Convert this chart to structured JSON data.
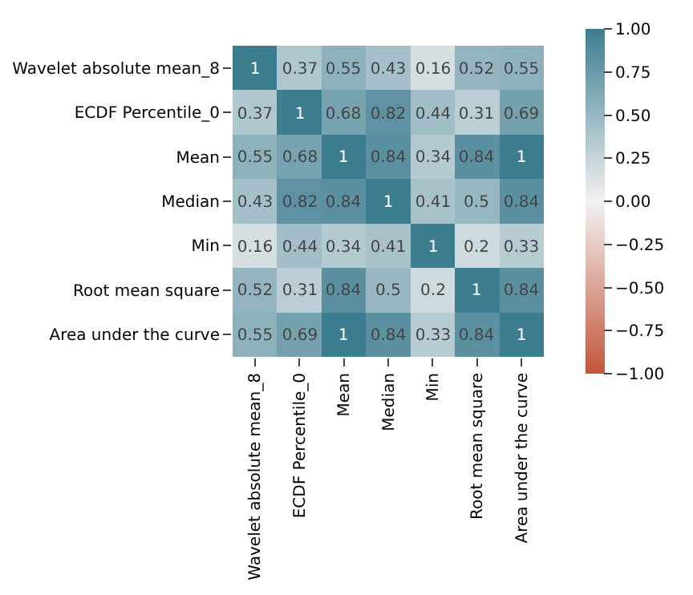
{
  "chart_data": {
    "type": "heatmap",
    "categories": [
      "Wavelet absolute mean_8",
      "ECDF Percentile_0",
      "Mean",
      "Median",
      "Min",
      "Root mean square",
      "Area under the curve"
    ],
    "y_categories": [
      "Wavelet absolute mean_8",
      "ECDF Percentile_0",
      "Mean",
      "Median",
      "Min",
      "Root mean square",
      "Area under the curve"
    ],
    "cells": [
      [
        1,
        0.37,
        0.55,
        0.43,
        0.16,
        0.52,
        0.55
      ],
      [
        0.37,
        1,
        0.68,
        0.82,
        0.44,
        0.31,
        0.69
      ],
      [
        0.55,
        0.68,
        1,
        0.84,
        0.34,
        0.84,
        1
      ],
      [
        0.43,
        0.82,
        0.84,
        1,
        0.41,
        0.5,
        0.84
      ],
      [
        0.16,
        0.44,
        0.34,
        0.41,
        1,
        0.2,
        0.33
      ],
      [
        0.52,
        0.31,
        0.84,
        0.5,
        0.2,
        1,
        0.84
      ],
      [
        0.55,
        0.69,
        1,
        0.84,
        0.33,
        0.84,
        1
      ]
    ],
    "data_labels": true,
    "clim": [
      -1,
      1
    ],
    "cticks": [
      {
        "value": -1,
        "label": "−1.00"
      },
      {
        "value": -0.75,
        "label": "−0.75"
      },
      {
        "value": -0.5,
        "label": "−0.50"
      },
      {
        "value": -0.25,
        "label": "−0.25"
      },
      {
        "value": 0,
        "label": "0.00"
      },
      {
        "value": 0.25,
        "label": "0.25"
      },
      {
        "value": 0.5,
        "label": "0.50"
      },
      {
        "value": 0.75,
        "label": "0.75"
      },
      {
        "value": 1,
        "label": "1.00"
      }
    ]
  }
}
